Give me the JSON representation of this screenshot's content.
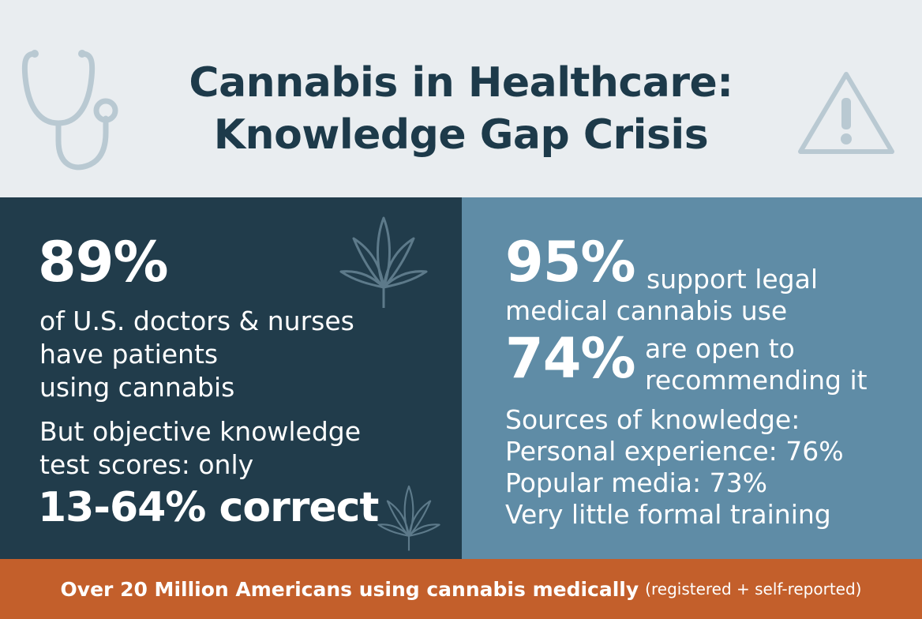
{
  "header": {
    "title_line1": "Cannabis in Healthcare:",
    "title_line2": "Knowledge Gap Crisis",
    "left_icon": "stethoscope-icon",
    "right_icon": "warning-icon"
  },
  "left_panel": {
    "stat": "89%",
    "lines": [
      "of U.S. doctors & nurses",
      "have patients",
      "using cannabis"
    ],
    "but_lines": [
      "But objective knowledge",
      "test scores: only"
    ],
    "range": "13-64% correct",
    "icon": "cannabis-leaf-icon"
  },
  "right_panel": {
    "stat1": "95%",
    "stat1_text_a": "support legal",
    "stat1_text_b": "medical cannabis use",
    "stat2": "74%",
    "stat2_text_a": "are open to",
    "stat2_text_b": "recommending it",
    "sources": [
      "Sources of knowledge:",
      "Personal experience: 76%",
      "Popular media: 73%",
      "Very little formal training"
    ]
  },
  "footer": {
    "main": "Over 20 Million Americans using cannabis medically",
    "sub": "(registered + self-reported)"
  },
  "colors": {
    "header_bg": "#e9edf0",
    "title": "#1d3a4a",
    "left_bg": "#213c4b",
    "right_bg": "#5f8ca6",
    "footer_bg": "#c35f2b"
  }
}
